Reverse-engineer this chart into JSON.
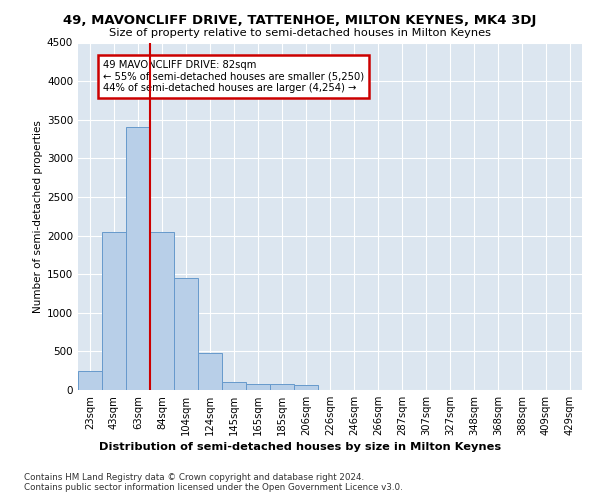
{
  "title": "49, MAVONCLIFF DRIVE, TATTENHOE, MILTON KEYNES, MK4 3DJ",
  "subtitle": "Size of property relative to semi-detached houses in Milton Keynes",
  "xlabel": "Distribution of semi-detached houses by size in Milton Keynes",
  "ylabel": "Number of semi-detached properties",
  "footer1": "Contains HM Land Registry data © Crown copyright and database right 2024.",
  "footer2": "Contains public sector information licensed under the Open Government Licence v3.0.",
  "bar_labels": [
    "23sqm",
    "43sqm",
    "63sqm",
    "84sqm",
    "104sqm",
    "124sqm",
    "145sqm",
    "165sqm",
    "185sqm",
    "206sqm",
    "226sqm",
    "246sqm",
    "266sqm",
    "287sqm",
    "307sqm",
    "327sqm",
    "348sqm",
    "368sqm",
    "388sqm",
    "409sqm",
    "429sqm"
  ],
  "bar_heights": [
    250,
    2050,
    3400,
    2050,
    1450,
    480,
    110,
    80,
    75,
    60,
    0,
    0,
    0,
    0,
    0,
    0,
    0,
    0,
    0,
    0,
    0
  ],
  "bar_color": "#b8cfe8",
  "bar_edge_color": "#6699cc",
  "vline_index": 2.5,
  "ylim": [
    0,
    4500
  ],
  "yticks": [
    0,
    500,
    1000,
    1500,
    2000,
    2500,
    3000,
    3500,
    4000,
    4500
  ],
  "bg_color": "#ffffff",
  "plot_bg_color": "#dce6f0",
  "grid_color": "#ffffff",
  "annotation_box_color": "#cc0000",
  "vline_color": "#cc0000",
  "annotation_line1": "49 MAVONCLIFF DRIVE: 82sqm",
  "annotation_line2": "← 55% of semi-detached houses are smaller (5,250)",
  "annotation_line3": "44% of semi-detached houses are larger (4,254) →"
}
